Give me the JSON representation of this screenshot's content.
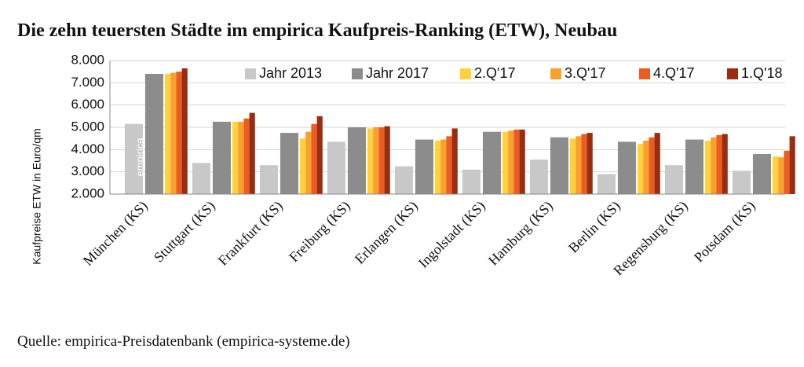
{
  "chart_data": {
    "type": "bar",
    "title": "Die zehn teuersten Städte im empirica Kaufpreis-Ranking (ETW), Neubau",
    "ylabel": "Kaufpreise ETW in Euro/qm",
    "xlabel": "",
    "ylim": [
      2000,
      8000
    ],
    "yticks": [
      2000,
      3000,
      4000,
      5000,
      6000,
      7000,
      8000
    ],
    "ytick_labels": [
      "2.000",
      "3.000",
      "4.000",
      "5.000",
      "6.000",
      "7.000",
      "8.000"
    ],
    "grid": true,
    "legend_position": "top",
    "categories": [
      "München (KS)",
      "Stuttgart (KS)",
      "Frankfurt (KS)",
      "Freiburg (KS)",
      "Erlangen (KS)",
      "Ingolstadt (KS)",
      "Hamburg (KS)",
      "Berlin (KS)",
      "Regensburg (KS)",
      "Potsdam (KS)"
    ],
    "series": [
      {
        "name": "Jahr 2013",
        "color": "#c8c8c8",
        "values": [
          5150,
          3400,
          3300,
          4350,
          3250,
          3100,
          3550,
          2900,
          3300,
          3050
        ]
      },
      {
        "name": "Jahr 2017",
        "color": "#8c8c8c",
        "values": [
          7400,
          5250,
          4750,
          5000,
          4450,
          4800,
          4550,
          4350,
          4450,
          3800
        ]
      },
      {
        "name": "2.Q'17",
        "color": "#ffd23c",
        "values": [
          7400,
          5250,
          4500,
          4950,
          4400,
          4800,
          4500,
          4250,
          4400,
          3700
        ]
      },
      {
        "name": "3.Q'17",
        "color": "#f7a12f",
        "values": [
          7450,
          5250,
          4800,
          5000,
          4450,
          4850,
          4600,
          4400,
          4550,
          3650
        ]
      },
      {
        "name": "4.Q'17",
        "color": "#e95e20",
        "values": [
          7500,
          5400,
          5150,
          5000,
          4600,
          4900,
          4700,
          4550,
          4650,
          3950
        ]
      },
      {
        "name": "1.Q'18",
        "color": "#9c2c10",
        "values": [
          7650,
          5650,
          5500,
          5050,
          4950,
          4900,
          4750,
          4750,
          4700,
          4600
        ]
      }
    ],
    "annotation": "empirica"
  },
  "source": "Quelle: empirica-Preisdatenbank (empirica-systeme.de)"
}
